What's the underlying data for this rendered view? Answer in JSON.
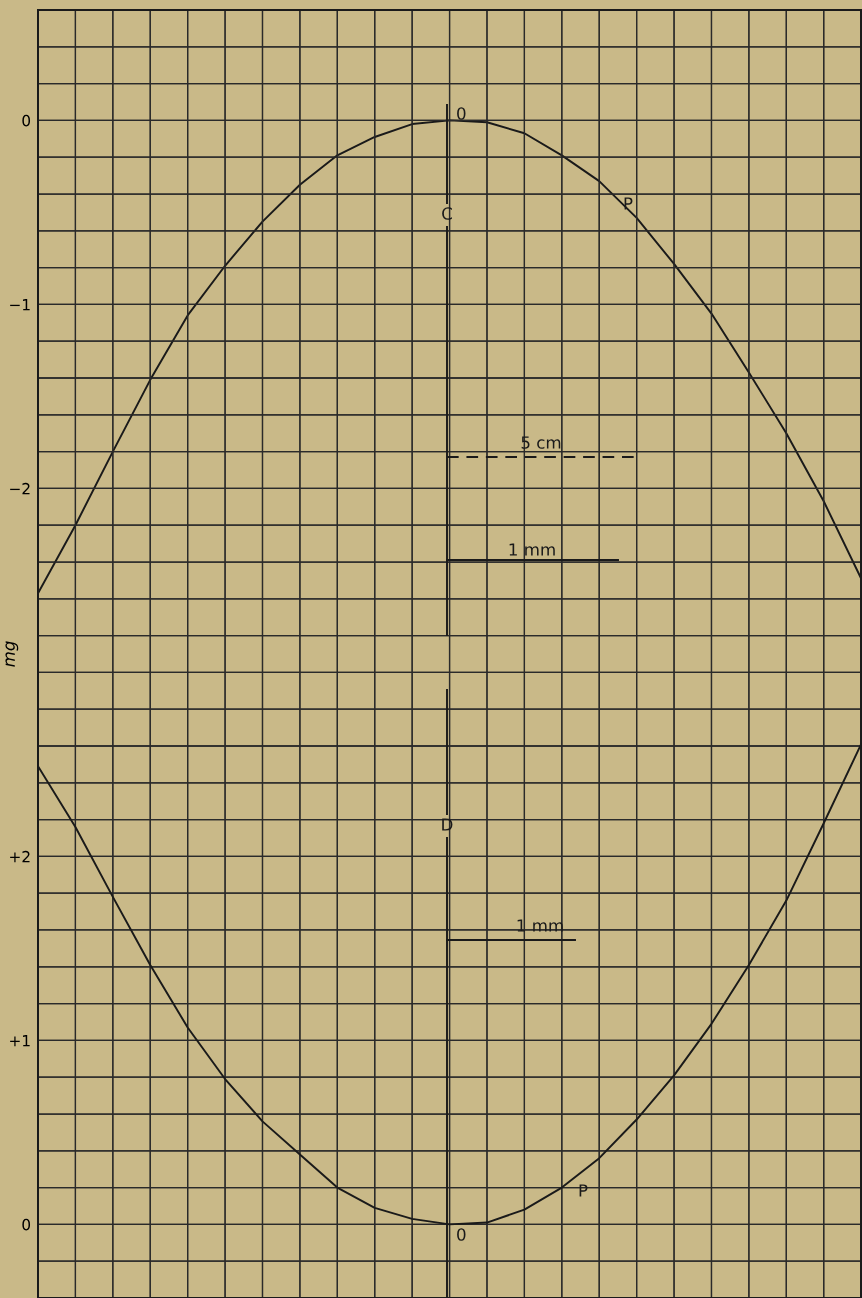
{
  "chart_data": [
    {
      "type": "line",
      "ylabel": "mg",
      "categories": [
        null,
        null,
        null,
        null,
        null,
        null,
        null,
        null,
        null,
        null,
        null,
        null,
        null,
        null,
        null,
        null,
        null,
        null,
        null,
        null,
        null,
        null,
        null
      ],
      "ylim": [
        -6.4,
        0.6
      ],
      "yticks": [
        {
          "value": -6.2,
          "label": null
        },
        {
          "value": -6,
          "label": null
        },
        {
          "value": -5.8,
          "label": null
        },
        {
          "value": -5.6,
          "label": null
        },
        {
          "value": -5.4,
          "label": null
        },
        {
          "value": -5.2,
          "label": null
        },
        {
          "value": -5,
          "label": null
        },
        {
          "value": -4.8,
          "label": null
        },
        {
          "value": -4.6,
          "label": null
        },
        {
          "value": -4.4,
          "label": null
        },
        {
          "value": -4.2,
          "label": null
        },
        {
          "value": -4,
          "label": null
        },
        {
          "value": -3.8,
          "label": null
        },
        {
          "value": -3.6,
          "label": null
        },
        {
          "value": -3.4,
          "label": null
        },
        {
          "value": -3.2,
          "label": null
        },
        {
          "value": -3,
          "label": null
        },
        {
          "value": -2.8,
          "label": null
        },
        {
          "value": -2.6,
          "label": null
        },
        {
          "value": -2.4,
          "label": null
        },
        {
          "value": -2.2,
          "label": null
        },
        {
          "value": -2,
          "label": "−2"
        },
        {
          "value": -1.8,
          "label": null
        },
        {
          "value": -1.6,
          "label": null
        },
        {
          "value": -1.4,
          "label": null
        },
        {
          "value": -1.2,
          "label": null
        },
        {
          "value": -1,
          "label": "−1"
        },
        {
          "value": -0.8,
          "label": null
        },
        {
          "value": -0.6,
          "label": null
        },
        {
          "value": -0.4,
          "label": null
        },
        {
          "value": -0.2,
          "label": null
        },
        0,
        {
          "value": 0.2,
          "label": null
        },
        {
          "value": 0.4,
          "label": null
        },
        {
          "value": 0.6,
          "label": null
        }
      ],
      "grid": true,
      "series": [
        {
          "color": "#1a1a1a",
          "values": [
            -2.57,
            -2.2,
            -1.8,
            -1.41,
            -1.06,
            -0.79,
            -0.55,
            -0.35,
            -0.19,
            -0.09,
            -0.02,
            0,
            -0.01,
            -0.07,
            -0.19,
            -0.33,
            -0.53,
            -0.78,
            -1.05,
            -1.37,
            -1.7,
            -2.07,
            -2.49
          ]
        }
      ],
      "annotations": [
        "0",
        "C",
        "P",
        "5 cm",
        "1 mm"
      ]
    },
    {
      "type": "line",
      "categories": [
        null,
        null,
        null,
        null,
        null,
        null,
        null,
        null,
        null,
        null,
        null,
        null,
        null,
        null,
        null,
        null,
        null,
        null,
        null,
        null,
        null,
        null,
        null
      ],
      "ylim": [
        -0.4,
        6.6
      ],
      "yticks": [
        {
          "value": -0.2,
          "label": null
        },
        0,
        {
          "value": 0.2,
          "label": null
        },
        {
          "value": 0.4,
          "label": null
        },
        {
          "value": 0.6,
          "label": null
        },
        {
          "value": 0.8,
          "label": null
        },
        {
          "value": 1,
          "label": "+1"
        },
        {
          "value": 1.2,
          "label": null
        },
        {
          "value": 1.4,
          "label": null
        },
        {
          "value": 1.6,
          "label": null
        },
        {
          "value": 1.8,
          "label": null
        },
        {
          "value": 2,
          "label": "+2"
        },
        {
          "value": 2.2,
          "label": null
        },
        {
          "value": 2.4,
          "label": null
        },
        {
          "value": 2.6,
          "label": null
        },
        {
          "value": 2.8,
          "label": null
        },
        {
          "value": 3,
          "label": null
        },
        {
          "value": 3.2,
          "label": null
        },
        {
          "value": 3.4,
          "label": null
        },
        {
          "value": 3.6,
          "label": null
        },
        {
          "value": 3.8,
          "label": null
        },
        {
          "value": 4,
          "label": null
        },
        {
          "value": 4.2,
          "label": null
        },
        {
          "value": 4.4,
          "label": null
        },
        {
          "value": 4.6,
          "label": null
        },
        {
          "value": 4.8,
          "label": null
        },
        {
          "value": 5,
          "label": null
        },
        {
          "value": 5.2,
          "label": null
        },
        {
          "value": 5.4,
          "label": null
        },
        {
          "value": 5.6,
          "label": null
        },
        {
          "value": 5.8,
          "label": null
        },
        {
          "value": 6,
          "label": null
        },
        {
          "value": 6.2,
          "label": null
        },
        {
          "value": 6.4,
          "label": null
        },
        {
          "value": 6.6,
          "label": null
        }
      ],
      "grid": true,
      "series": [
        {
          "color": "#1a1a1a",
          "values": [
            2.49,
            2.16,
            1.78,
            1.41,
            1.07,
            0.79,
            0.56,
            0.38,
            0.2,
            0.09,
            0.03,
            0,
            0.01,
            0.08,
            0.2,
            0.36,
            0.57,
            0.81,
            1.09,
            1.41,
            1.76,
            2.18,
            2.61
          ]
        }
      ],
      "annotations": [
        "D",
        "1 mm",
        "P",
        "0"
      ]
    }
  ]
}
